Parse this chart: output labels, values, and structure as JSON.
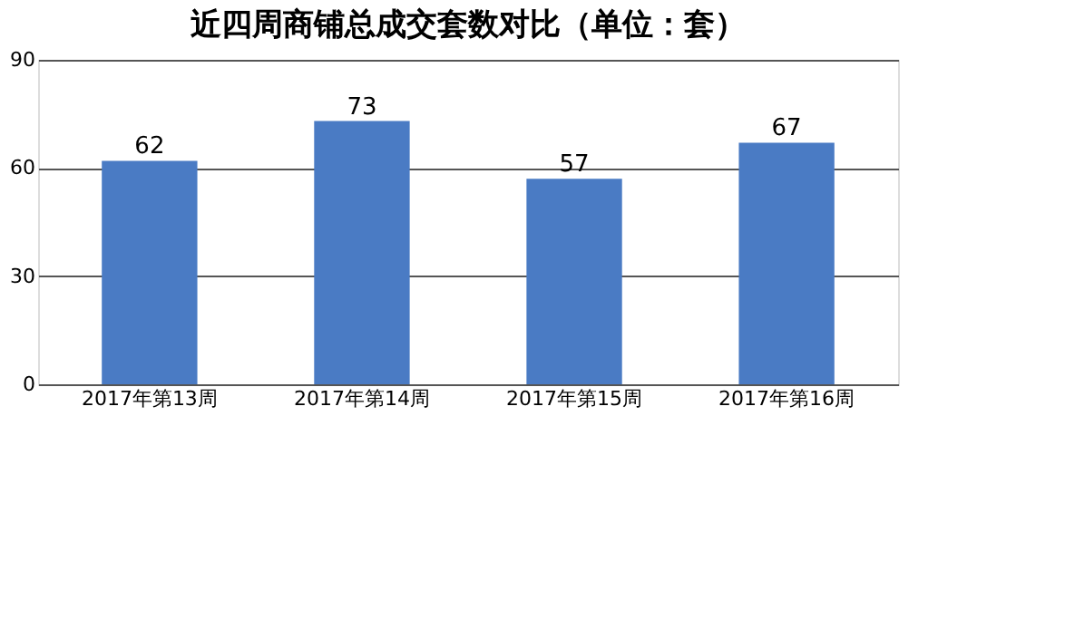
{
  "chart_data": {
    "type": "bar",
    "title": "近四周商铺总成交套数对比（单位：套）",
    "categories": [
      "2017年第13周",
      "2017年第14周",
      "2017年第15周",
      "2017年第16周"
    ],
    "values": [
      62,
      73,
      57,
      67
    ],
    "color": "#4a7bc4",
    "ylim": [
      0,
      90
    ],
    "yticks": [
      0,
      30,
      60,
      90
    ],
    "grid": "y",
    "data_labels": true
  }
}
